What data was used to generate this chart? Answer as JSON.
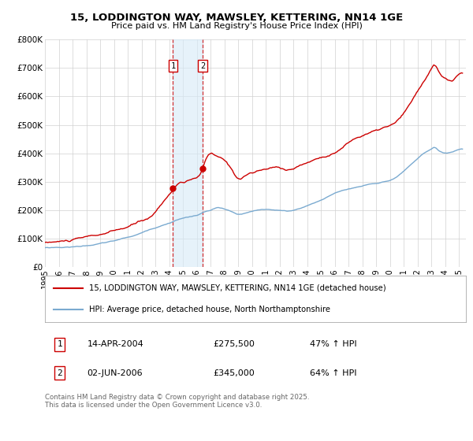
{
  "title": "15, LODDINGTON WAY, MAWSLEY, KETTERING, NN14 1GE",
  "subtitle": "Price paid vs. HM Land Registry's House Price Index (HPI)",
  "legend_line1": "15, LODDINGTON WAY, MAWSLEY, KETTERING, NN14 1GE (detached house)",
  "legend_line2": "HPI: Average price, detached house, North Northamptonshire",
  "footer": "Contains HM Land Registry data © Crown copyright and database right 2025.\nThis data is licensed under the Open Government Licence v3.0.",
  "transaction1_label": "1",
  "transaction1_date": "14-APR-2004",
  "transaction1_price": "£275,500",
  "transaction1_hpi": "47% ↑ HPI",
  "transaction2_label": "2",
  "transaction2_date": "02-JUN-2006",
  "transaction2_price": "£345,000",
  "transaction2_hpi": "64% ↑ HPI",
  "red_color": "#cc0000",
  "blue_color": "#7aaad0",
  "background_color": "#ffffff",
  "grid_color": "#d0d0d0",
  "vline1_x": 2004.28,
  "vline2_x": 2006.42,
  "ylim": [
    0,
    800000
  ],
  "xlim_start": 1995.0,
  "xlim_end": 2025.5,
  "yticks": [
    0,
    100000,
    200000,
    300000,
    400000,
    500000,
    600000,
    700000,
    800000
  ],
  "ytick_labels": [
    "£0",
    "£100K",
    "£200K",
    "£300K",
    "£400K",
    "£500K",
    "£600K",
    "£700K",
    "£800K"
  ],
  "xticks": [
    1995,
    1996,
    1997,
    1998,
    1999,
    2000,
    2001,
    2002,
    2003,
    2004,
    2005,
    2006,
    2007,
    2008,
    2009,
    2010,
    2011,
    2012,
    2013,
    2014,
    2015,
    2016,
    2017,
    2018,
    2019,
    2020,
    2021,
    2022,
    2023,
    2024,
    2025
  ],
  "transaction1_x": 2004.28,
  "transaction1_y": 275500,
  "transaction2_x": 2006.42,
  "transaction2_y": 345000
}
